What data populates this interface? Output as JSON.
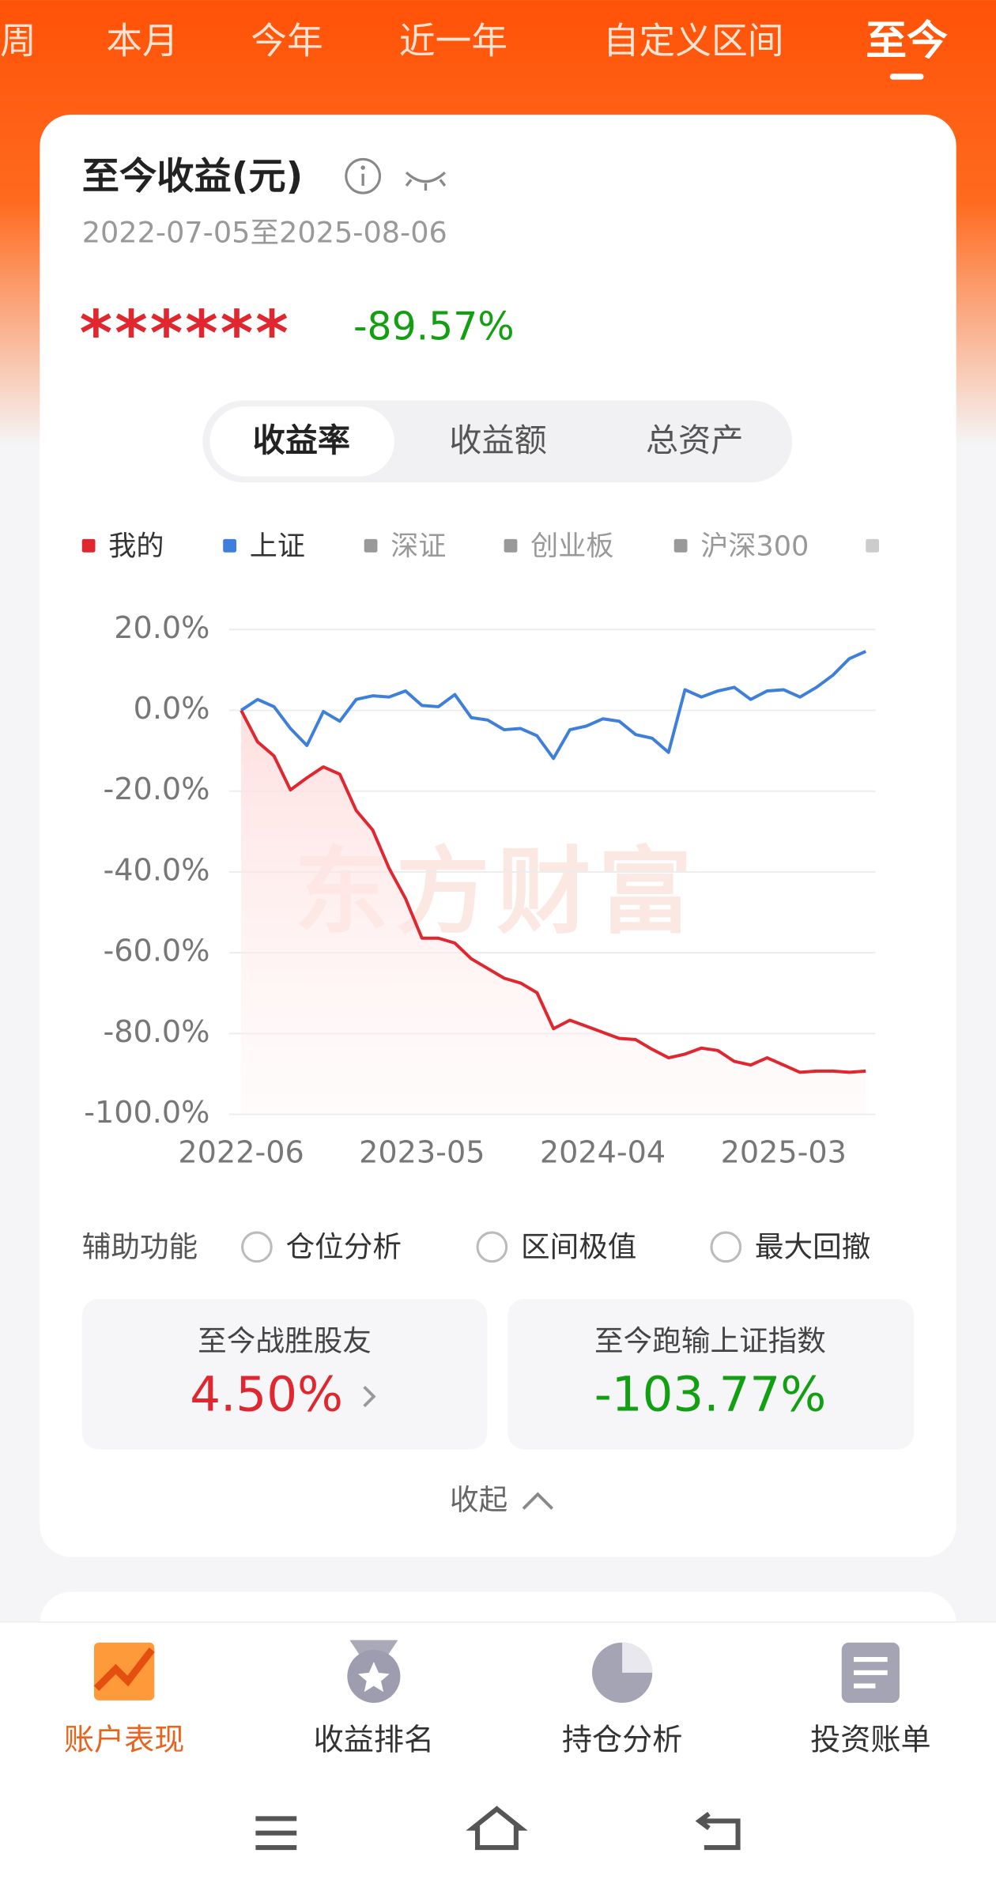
{
  "tabs": [
    "周",
    "本月",
    "今年",
    "近一年",
    "自定义区间",
    "至今"
  ],
  "active_tab": 5,
  "card": {
    "title": "至今收益(元)",
    "date_range": "2022-07-05至2025-08-06",
    "amount_masked": "******",
    "return": "-89.57%",
    "segments": [
      "收益率",
      "收益额",
      "总资产"
    ],
    "active_segment": 0
  },
  "chart_data": {
    "type": "line",
    "watermark": "东方财富",
    "x": [
      "2022-06",
      "2022-07",
      "2022-08",
      "2022-09",
      "2022-10",
      "2022-11",
      "2022-12",
      "2023-01",
      "2023-02",
      "2023-03",
      "2023-04",
      "2023-05",
      "2023-06",
      "2023-07",
      "2023-08",
      "2023-09",
      "2023-10",
      "2023-11",
      "2023-12",
      "2024-01",
      "2024-02",
      "2024-03",
      "2024-04",
      "2024-05",
      "2024-06",
      "2024-07",
      "2024-08",
      "2024-09",
      "2024-10",
      "2024-11",
      "2024-12",
      "2025-01",
      "2025-02",
      "2025-03",
      "2025-04",
      "2025-05",
      "2025-06",
      "2025-07",
      "2025-08"
    ],
    "xticks": [
      "2022-06",
      "2023-05",
      "2024-04",
      "2025-03"
    ],
    "ylim": [
      -100,
      20
    ],
    "yticks": [
      {
        "value": 20,
        "label": "20.0%"
      },
      {
        "value": 0,
        "label": "0.0%"
      },
      {
        "value": -20,
        "label": "-20.0%"
      },
      {
        "value": -40,
        "label": "-40.0%"
      },
      {
        "value": -60,
        "label": "-60.0%"
      },
      {
        "value": -80,
        "label": "-80.0%"
      },
      {
        "value": -100,
        "label": "-100.0%"
      }
    ],
    "grid": true,
    "series": [
      {
        "name": "我的",
        "color": "#e0262e",
        "area": true,
        "values": [
          0,
          -7.8,
          -11.3,
          -19.7,
          -16.7,
          -14.0,
          -15.8,
          -24.8,
          -29.6,
          -39.1,
          -46.6,
          -56.4,
          -56.4,
          -57.6,
          -61.5,
          -63.9,
          -66.3,
          -67.5,
          -69.9,
          -78.8,
          -76.7,
          -78.2,
          -79.7,
          -81.2,
          -81.5,
          -83.9,
          -86.0,
          -85.1,
          -83.6,
          -84.2,
          -86.9,
          -87.8,
          -86.0,
          -87.8,
          -89.6,
          -89.3,
          -89.3,
          -89.6,
          -89.3
        ]
      },
      {
        "name": "上证",
        "color": "#3d7fdb",
        "values": [
          0,
          2.7,
          0.9,
          -4.5,
          -8.7,
          -0.3,
          -2.7,
          2.7,
          3.6,
          3.3,
          4.8,
          1.2,
          0.9,
          3.9,
          -1.8,
          -2.4,
          -4.8,
          -4.5,
          -6.3,
          -11.9,
          -4.8,
          -3.9,
          -2.1,
          -2.7,
          -6.0,
          -6.9,
          -10.4,
          5.1,
          3.3,
          4.8,
          5.7,
          2.7,
          4.8,
          5.1,
          3.3,
          5.7,
          8.7,
          12.8,
          14.6
        ]
      }
    ],
    "inactive_legend": [
      "深证",
      "创业板",
      "沪深300"
    ],
    "inactive_color": "#999999"
  },
  "tools": {
    "label": "辅助功能",
    "options": [
      "仓位分析",
      "区间极值",
      "最大回撤"
    ]
  },
  "stats": [
    {
      "label": "至今战胜股友",
      "value": "4.50%",
      "color": "#e0262e"
    },
    {
      "label": "至今跑输上证指数",
      "value": "-103.77%",
      "color": "#12a012"
    }
  ],
  "collapse": "收起",
  "nav": [
    "账户表现",
    "收益排名",
    "持仓分析",
    "投资账单"
  ],
  "active_nav": 0
}
